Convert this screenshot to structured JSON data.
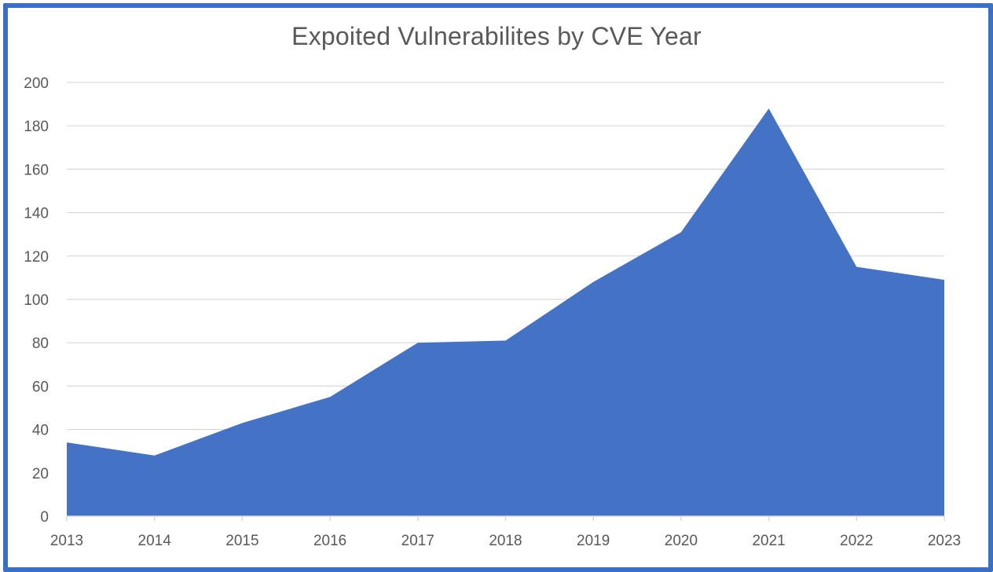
{
  "chart_data": {
    "type": "area",
    "title": "Expoited Vulnerabilites by CVE Year",
    "xlabel": "",
    "ylabel": "",
    "categories": [
      "2013",
      "2014",
      "2015",
      "2016",
      "2017",
      "2018",
      "2019",
      "2020",
      "2021",
      "2022",
      "2023"
    ],
    "series": [
      {
        "values": [
          34,
          28,
          43,
          55,
          80,
          81,
          108,
          131,
          188,
          115,
          109
        ]
      }
    ],
    "ylim": [
      0,
      200
    ],
    "yticks": [
      0,
      20,
      40,
      60,
      80,
      100,
      120,
      140,
      160,
      180,
      200
    ],
    "grid": true,
    "legend": "none",
    "colors": {
      "area": "#4472c4",
      "frame": "#3a70c4",
      "grid": "#d9d9d9",
      "text": "#595959"
    }
  }
}
